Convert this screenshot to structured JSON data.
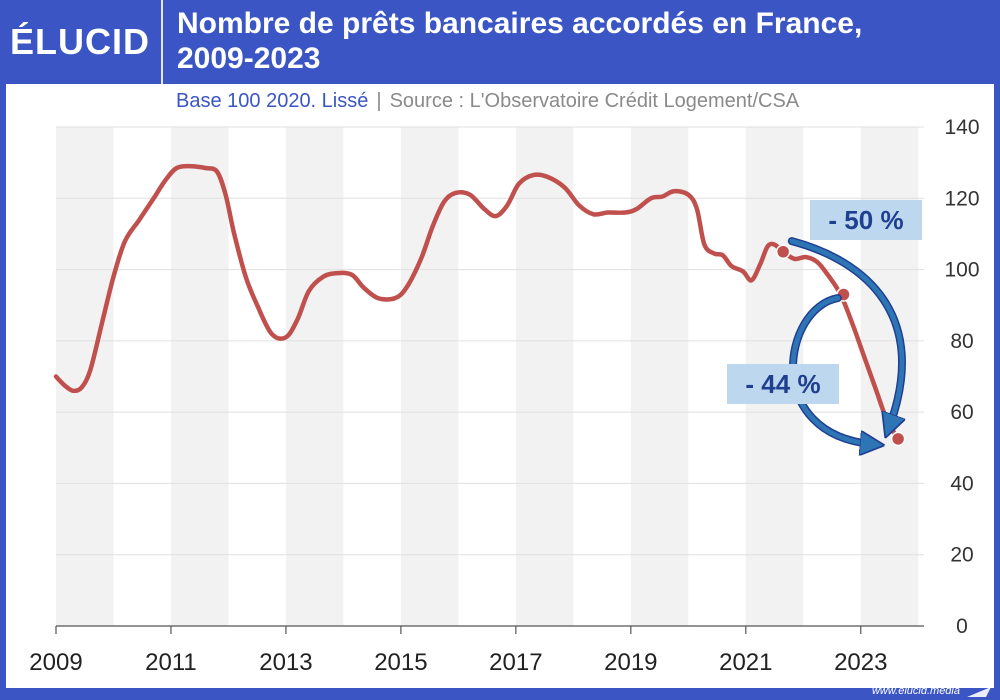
{
  "header": {
    "logo": "ÉLUCID",
    "title_line1": "Nombre de prêts bancaires accordés en France,",
    "title_line2": "2009-2023",
    "subtitle_base": "Base 100 2020. Lissé",
    "subtitle_sep": "|",
    "subtitle_source": "Source : L'Observatoire Crédit Logement/CSA"
  },
  "footer": {
    "url": "www.elucid.media"
  },
  "colors": {
    "frame": "#3b56c4",
    "line": "#c0504d",
    "band": "#f2f2f2",
    "annotation_box": "#bdd7ee",
    "annotation_text": "#1f3f91",
    "arrow": "#2e75b6"
  },
  "chart_data": {
    "type": "line",
    "title": "Nombre de prêts bancaires accordés en France, 2009-2023",
    "subtitle": "Base 100 2020. Lissé",
    "x_ticks": [
      "2009",
      "2011",
      "2013",
      "2015",
      "2017",
      "2019",
      "2021",
      "2023"
    ],
    "y_ticks": [
      0,
      20,
      40,
      60,
      80,
      100,
      120,
      140
    ],
    "xlim": [
      2009.0,
      2024.1
    ],
    "ylim": [
      0,
      140
    ],
    "y_axis_position": "right",
    "grid": "horizontal",
    "background": "alternating year bands",
    "series": [
      {
        "points": [
          [
            2009.0,
            70
          ],
          [
            2009.15,
            67.5
          ],
          [
            2009.3,
            66
          ],
          [
            2009.45,
            67
          ],
          [
            2009.6,
            72
          ],
          [
            2009.8,
            85
          ],
          [
            2010.0,
            98
          ],
          [
            2010.2,
            108
          ],
          [
            2010.45,
            114
          ],
          [
            2010.7,
            120
          ],
          [
            2010.9,
            125
          ],
          [
            2011.1,
            128.5
          ],
          [
            2011.35,
            129
          ],
          [
            2011.6,
            128.5
          ],
          [
            2011.8,
            127.5
          ],
          [
            2011.95,
            121
          ],
          [
            2012.1,
            110
          ],
          [
            2012.3,
            98
          ],
          [
            2012.5,
            90
          ],
          [
            2012.75,
            82
          ],
          [
            2013.0,
            81
          ],
          [
            2013.2,
            86
          ],
          [
            2013.4,
            94
          ],
          [
            2013.65,
            98
          ],
          [
            2013.9,
            99
          ],
          [
            2014.15,
            98.5
          ],
          [
            2014.35,
            95
          ],
          [
            2014.6,
            92
          ],
          [
            2014.9,
            92
          ],
          [
            2015.1,
            95
          ],
          [
            2015.35,
            103
          ],
          [
            2015.55,
            112
          ],
          [
            2015.75,
            119
          ],
          [
            2015.95,
            121.5
          ],
          [
            2016.2,
            121
          ],
          [
            2016.45,
            117
          ],
          [
            2016.65,
            115
          ],
          [
            2016.85,
            118
          ],
          [
            2017.05,
            124
          ],
          [
            2017.3,
            126.5
          ],
          [
            2017.55,
            126
          ],
          [
            2017.85,
            123
          ],
          [
            2018.1,
            118
          ],
          [
            2018.35,
            115.5
          ],
          [
            2018.6,
            116
          ],
          [
            2018.9,
            116
          ],
          [
            2019.1,
            117
          ],
          [
            2019.35,
            120
          ],
          [
            2019.55,
            120.5
          ],
          [
            2019.75,
            122
          ],
          [
            2020.0,
            121
          ],
          [
            2020.15,
            117
          ],
          [
            2020.28,
            107
          ],
          [
            2020.45,
            104.5
          ],
          [
            2020.6,
            104
          ],
          [
            2020.75,
            101
          ],
          [
            2020.95,
            99.5
          ],
          [
            2021.1,
            97
          ],
          [
            2021.25,
            101.5
          ],
          [
            2021.38,
            106.5
          ],
          [
            2021.5,
            107
          ],
          [
            2021.65,
            105
          ],
          [
            2021.85,
            103
          ],
          [
            2022.05,
            103.5
          ],
          [
            2022.25,
            102
          ],
          [
            2022.45,
            98
          ],
          [
            2022.65,
            93
          ],
          [
            2022.85,
            85
          ],
          [
            2023.05,
            76
          ],
          [
            2023.25,
            67
          ],
          [
            2023.45,
            58
          ],
          [
            2023.65,
            52.5
          ]
        ]
      }
    ],
    "highlight_points": [
      [
        2021.65,
        105
      ],
      [
        2022.7,
        93
      ],
      [
        2023.65,
        52.5
      ]
    ],
    "annotations": [
      {
        "text": "- 50 %",
        "from": [
          2021.8,
          108
        ],
        "to": [
          2023.5,
          56
        ],
        "label_at": "upper right"
      },
      {
        "text": "- 44 %",
        "from": [
          2022.6,
          92
        ],
        "to": [
          2023.2,
          51
        ],
        "label_at": "middle left"
      }
    ]
  }
}
